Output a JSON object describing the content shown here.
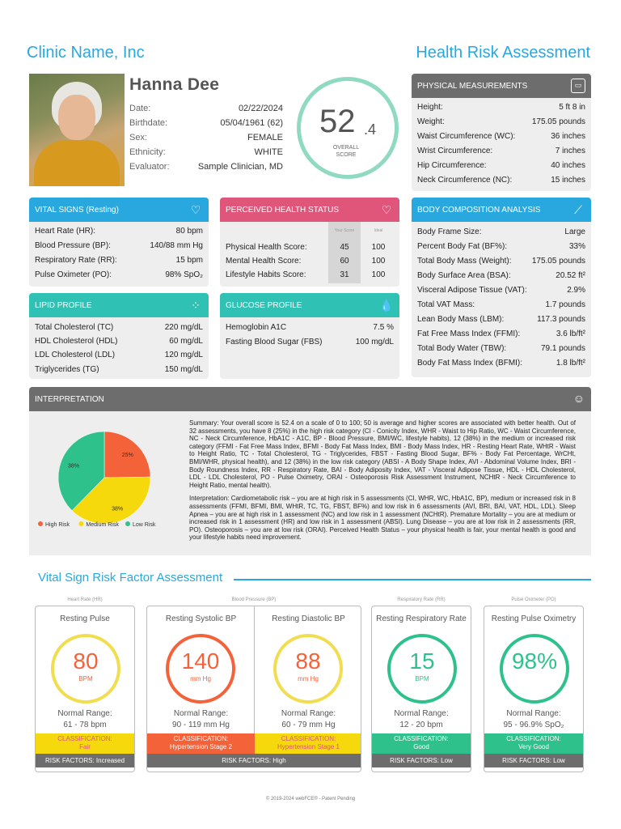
{
  "header": {
    "clinic_name": "Clinic Name, Inc",
    "report_title": "Health Risk Assessment"
  },
  "patient": {
    "name": "Hanna Dee",
    "fields": [
      {
        "label": "Date:",
        "value": "02/22/2024"
      },
      {
        "label": "Birthdate:",
        "value": "05/04/1961 (62)"
      },
      {
        "label": "Sex:",
        "value": "FEMALE"
      },
      {
        "label": "Ethnicity:",
        "value": "WHITE"
      },
      {
        "label": "Evaluator:",
        "value": "Sample Clinician, MD"
      }
    ]
  },
  "overall_score": {
    "whole": "52",
    "decimal": ".4",
    "label": "OVERALL SCORE"
  },
  "physical": {
    "title": "PHYSICAL MEASUREMENTS",
    "icon": "scale-icon",
    "rows": [
      {
        "label": "Height:",
        "value": "5 ft 8 in"
      },
      {
        "label": "Weight:",
        "value": "175.05 pounds"
      },
      {
        "label": "Waist Circumference (WC):",
        "value": "36 inches"
      },
      {
        "label": "Wrist Circumference:",
        "value": "7 inches"
      },
      {
        "label": "Hip Circumference:",
        "value": "40 inches"
      },
      {
        "label": "Neck Circumference (NC):",
        "value": "15 inches"
      }
    ]
  },
  "vitals": {
    "title": "VITAL SIGNS (Resting)",
    "icon": "heartbeat-icon",
    "rows": [
      {
        "label": "Heart Rate (HR):",
        "value": "80 bpm"
      },
      {
        "label": "Blood Pressure (BP):",
        "value": "140/88 mm Hg"
      },
      {
        "label": "Respiratory Rate (RR):",
        "value": "15 bpm"
      },
      {
        "label": "Pulse Oximeter (PO):",
        "value": "98% SpO₂"
      }
    ]
  },
  "perceived": {
    "title": "PERCEIVED HEALTH STATUS",
    "icon": "heart-icon",
    "col_your": "Your Score",
    "col_ideal": "Ideal",
    "rows": [
      {
        "label": "Physical Health Score:",
        "score": "45",
        "ideal": "100"
      },
      {
        "label": "Mental Health Score:",
        "score": "60",
        "ideal": "100"
      },
      {
        "label": "Lifestyle Habits Score:",
        "score": "31",
        "ideal": "100"
      }
    ]
  },
  "body_comp": {
    "title": "BODY COMPOSITION ANALYSIS",
    "icon": "caliper-icon",
    "rows": [
      {
        "label": "Body Frame Size:",
        "value": "Large"
      },
      {
        "label": "Percent Body Fat (BF%):",
        "value": "33%"
      },
      {
        "label": "Total Body Mass (Weight):",
        "value": "175.05 pounds"
      },
      {
        "label": "Body Surface Area (BSA):",
        "value": "20.52 ft²"
      },
      {
        "label": "Visceral Adipose Tissue (VAT):",
        "value": "2.9%"
      },
      {
        "label": "Total VAT Mass:",
        "value": "1.7 pounds"
      },
      {
        "label": "Lean Body Mass (LBM):",
        "value": "117.3 pounds"
      },
      {
        "label": "Fat Free Mass Index (FFMI):",
        "value": "3.6 lb/ft²"
      },
      {
        "label": "Total Body Water (TBW):",
        "value": "79.1 pounds"
      },
      {
        "label": "Body Fat Mass Index (BFMI):",
        "value": "1.8 lb/ft²"
      }
    ]
  },
  "lipid": {
    "title": "LIPID PROFILE",
    "icon": "lipid-drops-icon",
    "rows": [
      {
        "label": "Total Cholesterol (TC)",
        "value": "220 mg/dL"
      },
      {
        "label": "HDL Cholesterol (HDL)",
        "value": "60 mg/dL"
      },
      {
        "label": "LDL Cholesterol (LDL)",
        "value": "120 mg/dL"
      },
      {
        "label": "Triglycerides (TG)",
        "value": "150 mg/dL"
      }
    ]
  },
  "glucose": {
    "title": "GLUCOSE PROFILE",
    "icon": "blood-drop-icon",
    "rows": [
      {
        "label": "Hemoglobin A1C",
        "value": "7.5 %"
      },
      {
        "label": "Fasting Blood Sugar (FBS)",
        "value": "100 mg/dL"
      }
    ]
  },
  "interpretation": {
    "title": "INTERPRETATION",
    "icon": "head-gears-icon",
    "summary": "Summary: Your overall score is 52.4 on a scale of 0 to 100; 50 is average and higher scores are associated with better health. Out of 32 assessments, you have 8 (25%) in the high risk category (CI - Conicity Index, WHR - Waist to Hip Ratio, WC - Waist Circumference, NC - Neck Circumference, HbA1C - A1C, BP - Blood Pressure, BMI/WC, lifestyle habits), 12 (38%) in the medium or increased risk category (FFMI - Fat Free Mass Index, BFMI - Body Fat Mass Index, BMI - Body Mass Index, HR - Resting Heart Rate, WHtR - Waist to Height Ratio, TC - Total Cholesterol, TG - Triglycerides, FBST - Fasting Blood Sugar, BF% - Body Fat Percentage, WrCHt, BMI/WHR, physical health), and 12 (38%) in the low risk category (ABSI - A Body Shape Index, AVI - Abdominal Volume Index, BRI - Body Roundness Index, RR - Respiratory Rate, BAI - Body Adiposity Index, VAT - Visceral Adipose Tissue, HDL - HDL Cholesterol, LDL - LDL Cholesterol, PO - Pulse Oximetry, ORAI - Osteoporosis Risk Assessment Instrument, NCHtR - Neck Circumference to Height Ratio, mental health).",
    "detail": "Interpretation: Cardiometabolic risk – you are at high risk in 5 assessments (CI, WHR, WC, HbA1C, BP), medium or increased risk in 8 assessments (FFMI, BFMI, BMI, WHtR, TC, TG, FBST, BF%) and low risk in 6 assessments (AVI, BRI, BAI, VAT, HDL, LDL). Sleep Apnea – you are at high risk in 1 assessment (NC) and low risk in 1 assessment (NCHtR). Premature Mortality – you are at medium or increased risk in 1 assessment (HR) and low risk in 1 assessment (ABSI). Lung Disease – you are at low risk in 2 assessments (RR, PO). Osteoporosis – you are at low risk (ORAI). Perceived Health Status – your physical health is fair, your mental health is good and your lifestyle habits need improvement."
  },
  "chart_data": {
    "type": "pie",
    "categories": [
      "High Risk",
      "Medium Risk",
      "Low Risk"
    ],
    "values": [
      25,
      38,
      38
    ],
    "labels": [
      "25%",
      "38%",
      "38%"
    ],
    "colors": [
      "#f4623a",
      "#f5d90c",
      "#2fc18c"
    ],
    "legend": "bottom"
  },
  "vital_risk": {
    "title": "Vital Sign Risk Factor Assessment",
    "categories": {
      "hr": "Heart Rate (HR)",
      "bp": "Blood Pressure (BP)",
      "rr": "Respiratory Rate (RR)",
      "po": "Pulse Oximeter (PO)"
    },
    "cards": [
      {
        "title": "Resting Pulse",
        "value": "80",
        "unit": "BPM",
        "range_label": "Normal Range:",
        "range": "61 - 78 bpm",
        "class_label": "CLASSIFICATION:",
        "class": "Fair",
        "ring_color": "#f0dd50",
        "value_color": "#f4623a"
      },
      {
        "title": "Resting Systolic BP",
        "value": "140",
        "unit": "mm Hg",
        "range_label": "Normal Range:",
        "range": "90 - 119 mm Hg",
        "class_label": "CLASSIFICATION:",
        "class": "Hypertension Stage 2",
        "ring_color": "#f4623a",
        "value_color": "#f4623a"
      },
      {
        "title": "Resting Diastolic BP",
        "value": "88",
        "unit": "mm Hg",
        "range_label": "Normal Range:",
        "range": "60 - 79 mm Hg",
        "class_label": "CLASSIFICATION:",
        "class": "Hypertension Stage 1",
        "ring_color": "#f0dd50",
        "value_color": "#f4623a"
      },
      {
        "title": "Resting Respiratory Rate",
        "value": "15",
        "unit": "BPM",
        "range_label": "Normal Range:",
        "range": "12 - 20 bpm",
        "class_label": "CLASSIFICATION:",
        "class": "Good",
        "ring_color": "#2fc18c",
        "value_color": "#2fc18c"
      },
      {
        "title": "Resting Pulse Oximetry",
        "value": "98%",
        "unit": "",
        "range_label": "Normal Range:",
        "range": "95 - 96.9% SpO₂",
        "class_label": "CLASSIFICATION:",
        "class": "Very Good",
        "ring_color": "#2fc18c",
        "value_color": "#2fc18c"
      }
    ],
    "risk_factors": [
      {
        "text": "RISK FACTORS: Increased"
      },
      {
        "text": "RISK FACTORS: High"
      },
      {
        "text": "RISK FACTORS: Low"
      },
      {
        "text": "RISK FACTORS: Low"
      }
    ]
  },
  "colors": {
    "accent": "#29a8e0",
    "vital": "#29a8e0",
    "perceived": "#e0567a",
    "physical": "#6d6d6d",
    "lipid": "#2fc1b3",
    "glucose": "#2fc1b3"
  },
  "footer": "© 2019-2024 webFCE® - Patent Pending"
}
